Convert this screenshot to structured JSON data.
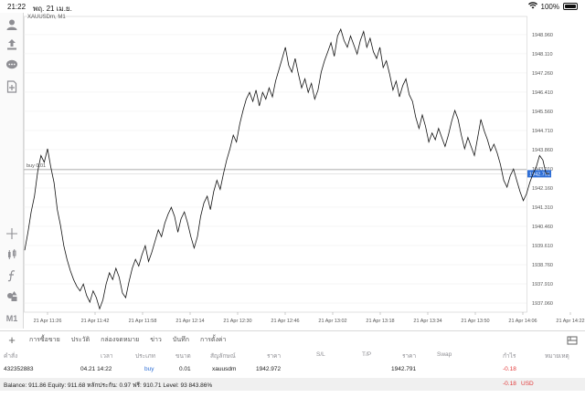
{
  "status": {
    "time": "21:22",
    "date": "พฤ. 21 เม.ย.",
    "battery": "100%"
  },
  "chart": {
    "title": "XAUUSDm, M1",
    "line_label": "buy 0.01",
    "price_tag": "1942.791",
    "colors": {
      "line": "#111111",
      "grid": "#ececec",
      "order_line": "#9a9a9a",
      "price_tag": "#2f6fd6"
    }
  },
  "toolbar": {
    "icon_names": [
      "account-icon",
      "share-icon",
      "chat-icon",
      "new-order-icon",
      "crosshair-icon",
      "indicators-icon",
      "function-icon",
      "objects-icon"
    ],
    "timeframe": "M1"
  },
  "chart_data": {
    "type": "line",
    "title": "XAUUSDm, M1",
    "y_ticks": [
      "1948.960",
      "1948.110",
      "1947.260",
      "1946.410",
      "1945.560",
      "1944.710",
      "1943.860",
      "1943.010",
      "1942.160",
      "1941.310",
      "1940.460",
      "1939.610",
      "1938.760",
      "1937.910",
      "1937.060"
    ],
    "x_ticks": [
      "21 Apr 11:26",
      "21 Apr 11:42",
      "21 Apr 11:58",
      "21 Apr 12:14",
      "21 Apr 12:30",
      "21 Apr 12:46",
      "21 Apr 13:02",
      "21 Apr 13:18",
      "21 Apr 13:34",
      "21 Apr 13:50",
      "21 Apr 14:06",
      "21 Apr 14:22"
    ],
    "ylim": [
      1936.7,
      1949.6
    ],
    "order_line_price": 1942.972,
    "current_price": 1942.791,
    "series": [
      {
        "values": [
          1939.4,
          1940.2,
          1941.1,
          1941.8,
          1942.9,
          1943.6,
          1943.3,
          1943.9,
          1943.1,
          1942.4,
          1941.2,
          1940.5,
          1939.6,
          1939.0,
          1938.5,
          1938.1,
          1937.8,
          1937.6,
          1937.9,
          1937.4,
          1937.1,
          1937.6,
          1937.3,
          1936.8,
          1937.2,
          1937.9,
          1938.4,
          1938.1,
          1938.6,
          1938.2,
          1937.5,
          1937.3,
          1938.0,
          1938.6,
          1939.0,
          1938.7,
          1939.2,
          1939.6,
          1938.9,
          1939.3,
          1939.8,
          1940.3,
          1940.0,
          1940.6,
          1941.0,
          1941.3,
          1940.9,
          1940.2,
          1940.8,
          1941.1,
          1940.6,
          1940.0,
          1939.5,
          1940.0,
          1940.9,
          1941.5,
          1941.8,
          1941.2,
          1942.0,
          1942.5,
          1942.1,
          1942.8,
          1943.4,
          1943.9,
          1944.5,
          1944.2,
          1945.0,
          1945.6,
          1946.1,
          1946.4,
          1946.0,
          1946.5,
          1945.8,
          1946.4,
          1946.1,
          1946.6,
          1946.2,
          1946.9,
          1947.4,
          1947.9,
          1948.4,
          1947.6,
          1947.3,
          1947.9,
          1947.2,
          1946.6,
          1947.0,
          1946.4,
          1946.8,
          1946.1,
          1946.5,
          1947.3,
          1947.8,
          1948.2,
          1948.6,
          1948.0,
          1948.9,
          1949.2,
          1948.7,
          1948.4,
          1948.9,
          1948.5,
          1948.1,
          1948.7,
          1949.1,
          1948.4,
          1948.8,
          1948.2,
          1947.9,
          1948.4,
          1947.5,
          1947.8,
          1947.2,
          1946.5,
          1946.9,
          1946.2,
          1946.7,
          1947.0,
          1946.3,
          1946.0,
          1945.3,
          1944.8,
          1945.4,
          1944.9,
          1944.2,
          1944.6,
          1944.3,
          1944.8,
          1944.4,
          1944.0,
          1944.5,
          1945.1,
          1945.6,
          1945.2,
          1944.5,
          1943.9,
          1944.4,
          1944.0,
          1943.6,
          1944.4,
          1945.2,
          1944.7,
          1944.3,
          1943.8,
          1944.1,
          1943.7,
          1943.2,
          1942.5,
          1942.2,
          1942.7,
          1943.0,
          1942.5,
          1942.0,
          1941.6,
          1941.9,
          1942.4,
          1942.8,
          1943.1,
          1943.6,
          1943.4,
          1942.8,
          1942.8
        ]
      }
    ]
  },
  "tabs": [
    {
      "label": "การซื้อขาย",
      "active": true
    },
    {
      "label": "ประวัติ",
      "active": false
    },
    {
      "label": "กล่องจดหมาย",
      "active": false
    },
    {
      "label": "ข่าว",
      "active": false
    },
    {
      "label": "บันทึก",
      "active": false
    },
    {
      "label": "การตั้งค่า",
      "active": false
    }
  ],
  "table": {
    "headers": {
      "order": "คำสั่ง",
      "time": "เวลา",
      "type": "ประเภท",
      "volume": "ขนาด",
      "symbol": "สัญลักษณ์",
      "open_price": "ราคา",
      "sl": "S/L",
      "tp": "T/P",
      "price": "ราคา",
      "swap": "Swap",
      "profit": "กำไร",
      "comment": "หมายเหตุ"
    },
    "row": {
      "order": "432352883",
      "time": "04.21 14:22",
      "type": "buy",
      "volume": "0.01",
      "symbol": "xauusdm",
      "open_price": "1942.972",
      "price": "1942.791",
      "profit": "-0.18"
    },
    "summary": {
      "text": "Balance: 911.86 Equity: 911.68 หลักประกัน: 0.97 ฟรี: 910.71 Level: 93 843.86%",
      "profit": "-0.18",
      "currency": "USD"
    }
  }
}
